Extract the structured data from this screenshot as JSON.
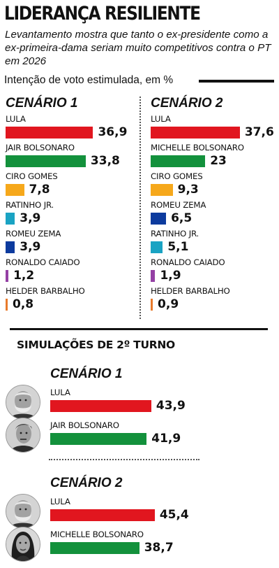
{
  "header": {
    "title": "LIDERANÇA RESILIENTE",
    "subtitle": "Levantamento mostra que tanto o ex-presidente como a ex-primeira-dama seriam muito competitivos contra o PT em 2026",
    "axis_title": "Intenção de voto estimulada, em %"
  },
  "runoff": {
    "title": "SIMULAÇÕES DE 2º TURNO"
  },
  "chart_data": [
    {
      "type": "bar",
      "title": "CENÁRIO 1",
      "categories": [
        "LULA",
        "JAIR BOLSONARO",
        "CIRO GOMES",
        "RATINHO JR.",
        "ROMEU ZEMA",
        "RONALDO CAIADO",
        "HELDER BARBALHO"
      ],
      "values": [
        36.9,
        33.8,
        7.8,
        3.9,
        3.9,
        1.2,
        0.8
      ],
      "labels": [
        "36,9",
        "33,8",
        "7,8",
        "3,9",
        "3,9",
        "1,2",
        "0,8"
      ],
      "colors": [
        "#e1161f",
        "#13913c",
        "#f6a81b",
        "#1aa3c3",
        "#0d3b9e",
        "#9440a4",
        "#e87a2b"
      ]
    },
    {
      "type": "bar",
      "title": "CENÁRIO 2",
      "categories": [
        "LULA",
        "MICHELLE BOLSONARO",
        "CIRO GOMES",
        "ROMEU ZEMA",
        "RATINHO JR.",
        "RONALDO CAIADO",
        "HELDER BARBALHO"
      ],
      "values": [
        37.6,
        23,
        9.3,
        6.5,
        5.1,
        1.9,
        0.9
      ],
      "labels": [
        "37,6",
        "23",
        "9,3",
        "6,5",
        "5,1",
        "1,9",
        "0,9"
      ],
      "colors": [
        "#e1161f",
        "#13913c",
        "#f6a81b",
        "#0d3b9e",
        "#1aa3c3",
        "#9440a4",
        "#e87a2b"
      ]
    },
    {
      "type": "bar",
      "title": "CENÁRIO 1",
      "categories": [
        "LULA",
        "JAIR BOLSONARO"
      ],
      "values": [
        43.9,
        41.9
      ],
      "labels": [
        "43,9",
        "41,9"
      ],
      "colors": [
        "#e1161f",
        "#13913c"
      ],
      "avatars": [
        "lula-photo-icon",
        "jair-bolsonaro-photo-icon"
      ]
    },
    {
      "type": "bar",
      "title": "CENÁRIO 2",
      "categories": [
        "LULA",
        "MICHELLE BOLSONARO"
      ],
      "values": [
        45.4,
        38.7
      ],
      "labels": [
        "45,4",
        "38,7"
      ],
      "colors": [
        "#e1161f",
        "#13913c"
      ],
      "avatars": [
        "lula-photo-icon",
        "michelle-bolsonaro-photo-icon"
      ]
    }
  ]
}
